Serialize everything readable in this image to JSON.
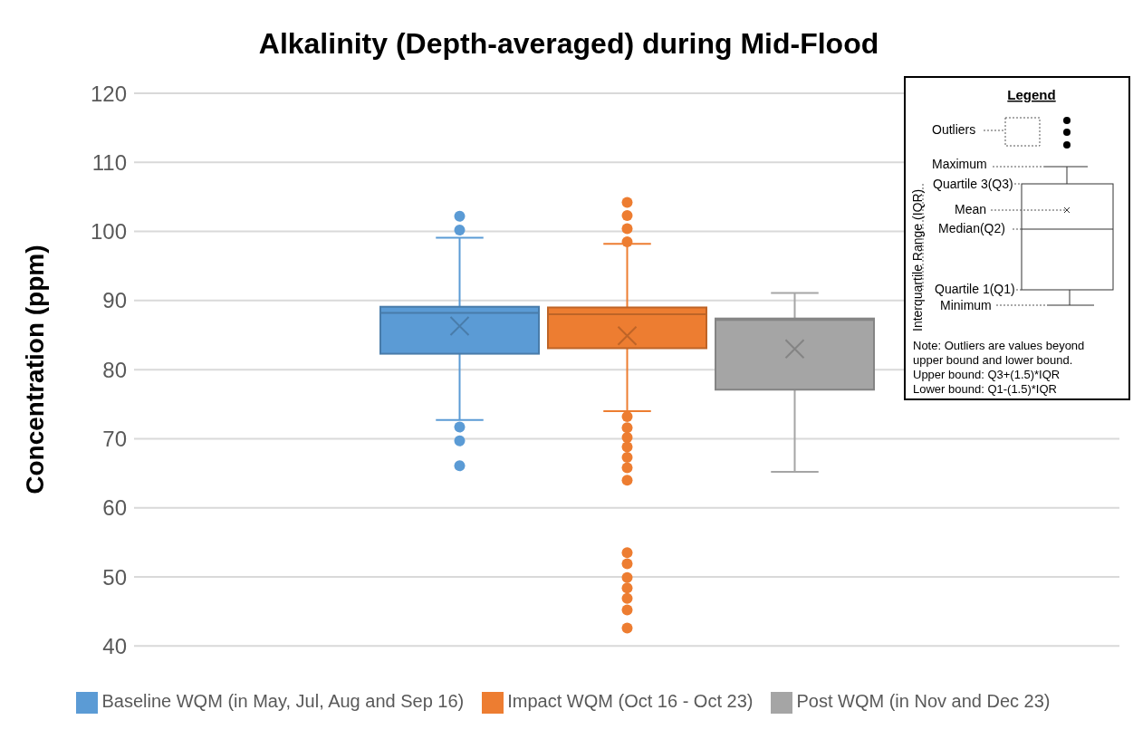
{
  "chart_data": {
    "type": "box",
    "title": "Alkalinity (Depth-averaged) during Mid-Flood",
    "ylabel": "Concentration (ppm)",
    "categories": [
      null
    ],
    "ylim": [
      40,
      120
    ],
    "yticks": [
      40,
      50,
      60,
      70,
      80,
      90,
      100,
      110,
      120
    ],
    "grid": "y",
    "legend": "bottom",
    "marker": "circle",
    "series": [
      {
        "name": "Baseline WQM (in May, Jul, Aug and Sep 16)",
        "color": "#5b9bd5",
        "boxes": [
          {
            "low": 72.7,
            "q1": 82.3,
            "median": 88.2,
            "q3": 89.1,
            "high": 99.1,
            "mean": 86.3,
            "outliers": [
              102.2,
              100.2,
              71.7,
              69.7,
              66.1
            ]
          }
        ]
      },
      {
        "name": "Impact WQM (Oct 16 - Oct 23)",
        "color": "#ed7d31",
        "boxes": [
          {
            "low": 74.0,
            "q1": 83.1,
            "median": 88.0,
            "q3": 89.0,
            "high": 98.2,
            "mean": 84.9,
            "outliers": [
              104.2,
              102.3,
              100.4,
              98.5,
              73.2,
              71.6,
              70.2,
              68.8,
              67.3,
              65.8,
              64.0,
              53.5,
              51.9,
              49.9,
              48.4,
              46.9,
              45.2,
              42.6
            ]
          }
        ]
      },
      {
        "name": "Post WQM (in Nov and Dec 23)",
        "color": "#a5a5a5",
        "boxes": [
          {
            "low": 65.2,
            "q1": 77.1,
            "median": 87.2,
            "q3": 87.4,
            "high": 91.1,
            "mean": 83.0
          }
        ]
      }
    ],
    "annotations": [
      "Legend",
      "Outliers",
      "Maximum",
      "Quartile 3(Q3)",
      "Mean",
      "Median(Q2)",
      "Quartile 1(Q1)",
      "Minimum",
      "Interquartile Range (IQR)",
      "Note: Outliers are values beyond upper bound and lower bound.",
      "Upper bound: Q3+(1.5)*IQR",
      "Lower bound: Q1-(1.5)*IQR"
    ]
  }
}
